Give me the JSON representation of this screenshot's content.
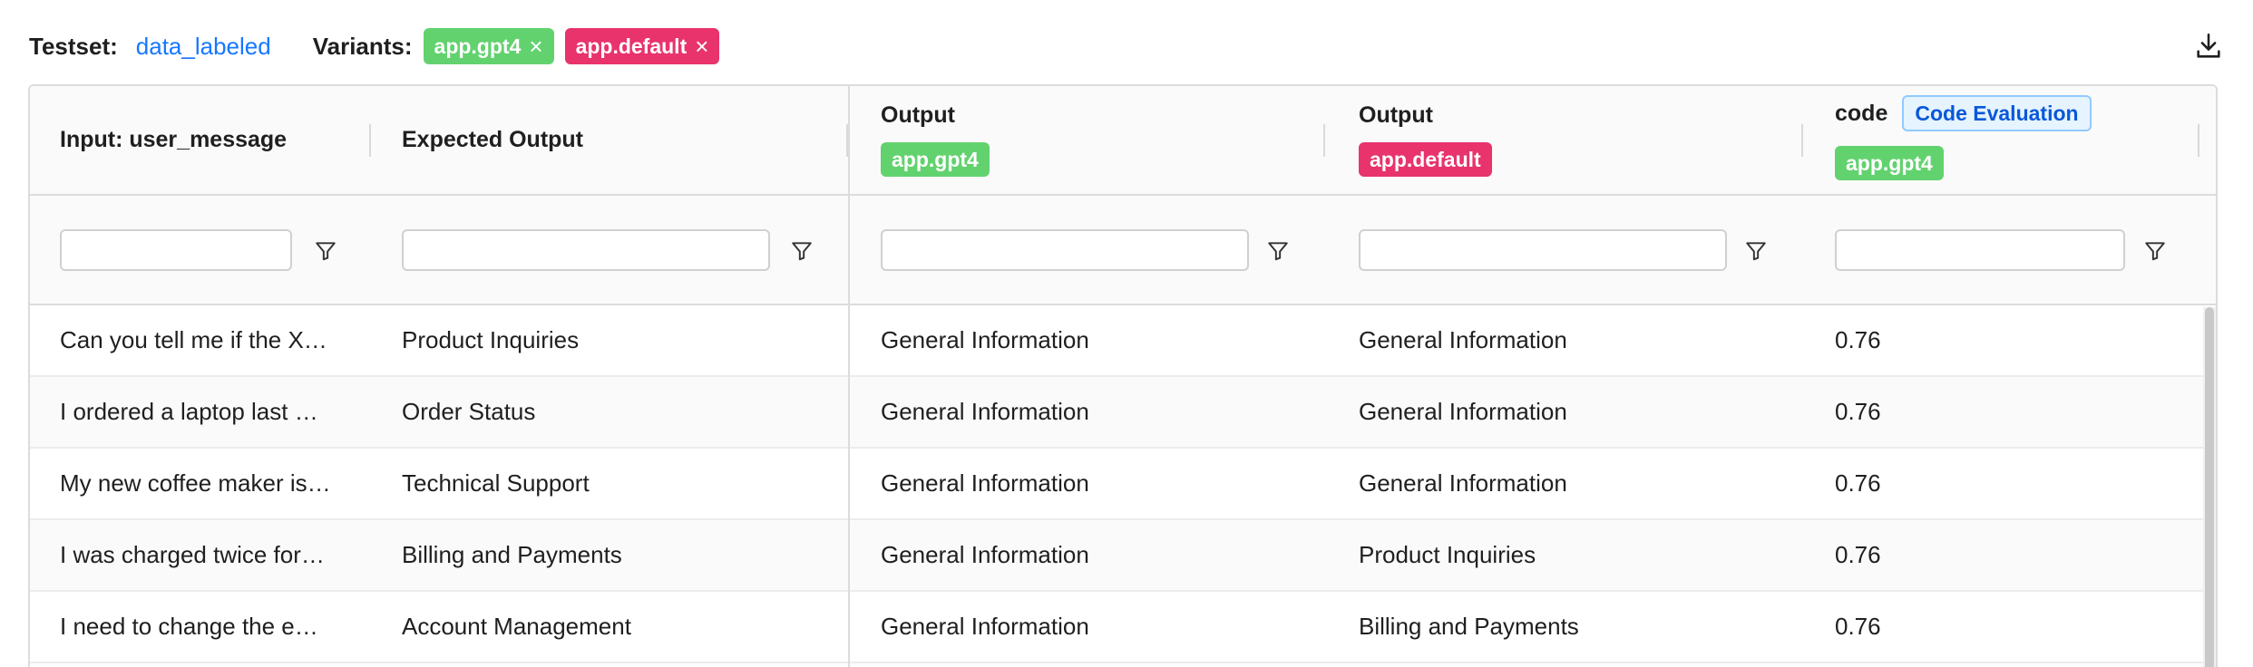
{
  "toolbar": {
    "testset_label": "Testset:",
    "testset_value": "data_labeled",
    "variants_label": "Variants:",
    "variants": [
      {
        "name": "app.gpt4",
        "color": "#62d26f"
      },
      {
        "name": "app.default",
        "color": "#e8336c"
      }
    ],
    "download_icon": "download-icon"
  },
  "table": {
    "columns": [
      {
        "title": "Input: user_message"
      },
      {
        "title": "Expected Output"
      },
      {
        "title": "Output",
        "variant": "app.gpt4"
      },
      {
        "title": "Output",
        "variant": "app.default"
      },
      {
        "title": "code",
        "badge": "Code Evaluation",
        "variant": "app.gpt4"
      }
    ],
    "filter_icon": "filter-icon",
    "rows": [
      [
        "Can you tell me if the X…",
        "Product Inquiries",
        "General Information",
        "General Information",
        "0.76"
      ],
      [
        "I ordered a laptop last …",
        "Order Status",
        "General Information",
        "General Information",
        "0.76"
      ],
      [
        "My new coffee maker is…",
        "Technical Support",
        "General Information",
        "General Information",
        "0.76"
      ],
      [
        "I was charged twice for…",
        "Billing and Payments",
        "General Information",
        "Product Inquiries",
        "0.76"
      ],
      [
        "I need to change the e…",
        "Account Management",
        "General Information",
        "Billing and Payments",
        "0.76"
      ]
    ]
  }
}
